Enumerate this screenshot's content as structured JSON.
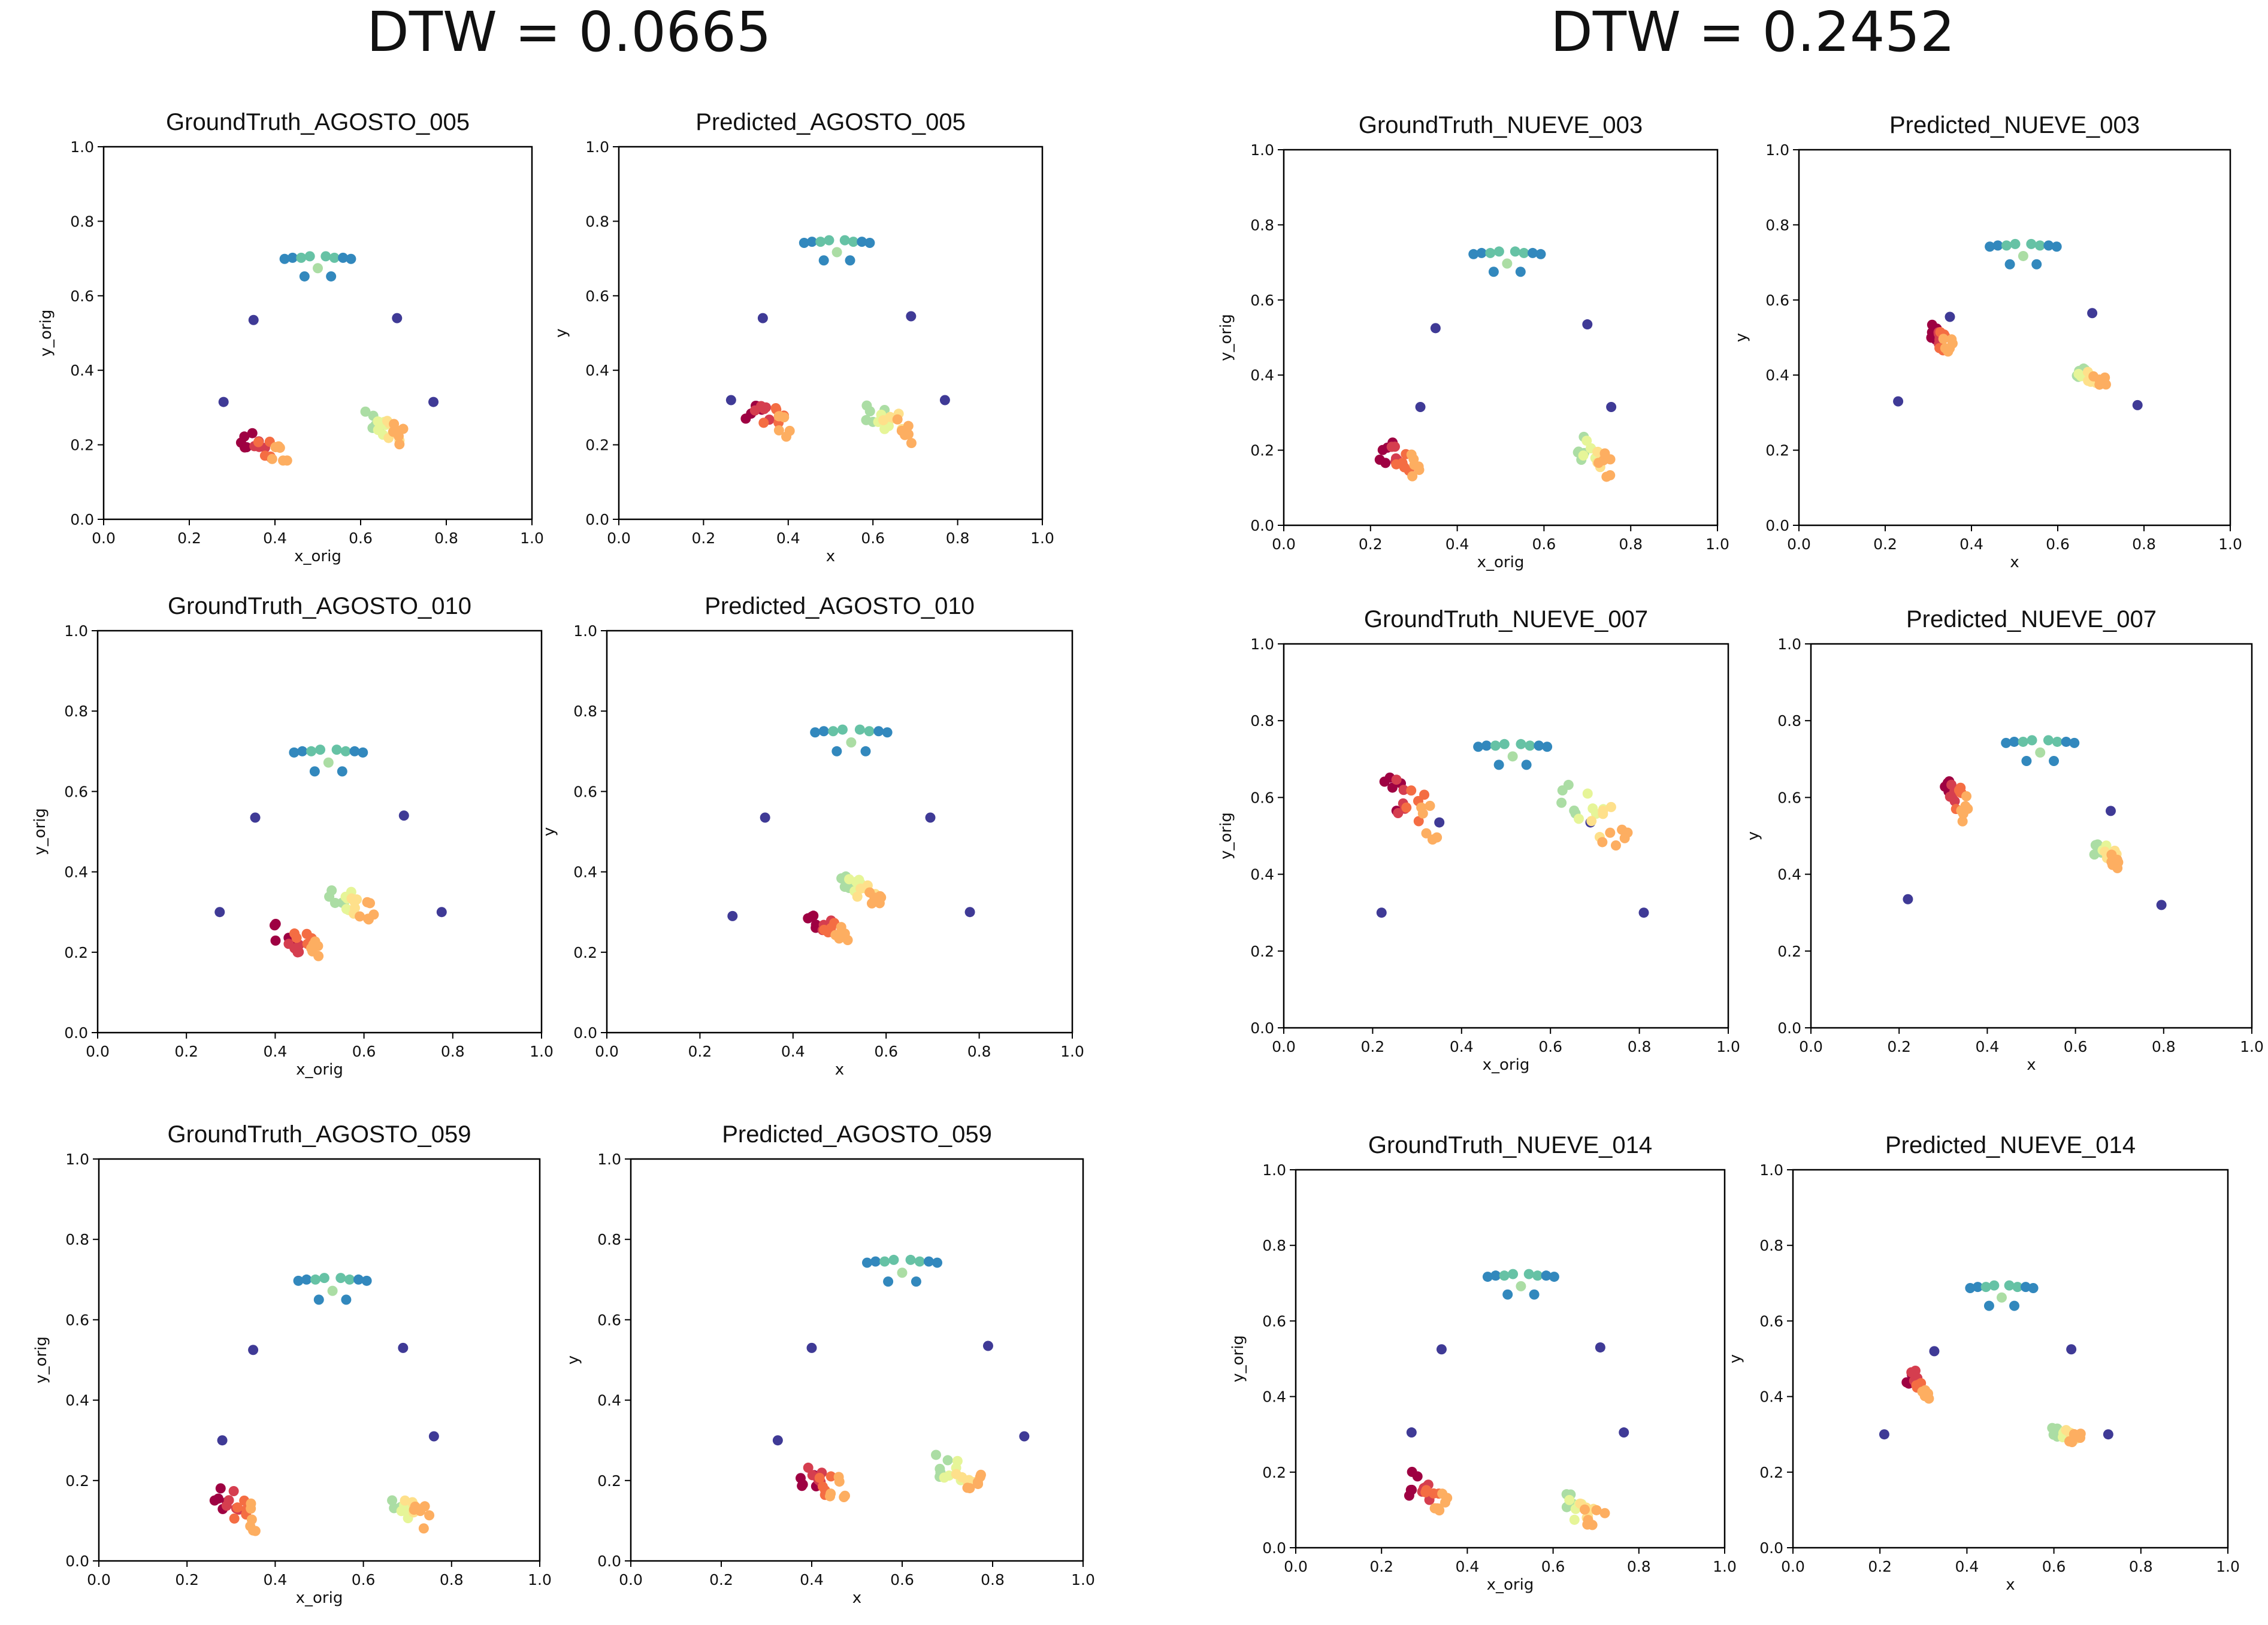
{
  "headings": {
    "left": "DTW = 0.0665",
    "right": "DTW = 0.2452"
  },
  "colors": {
    "axis": "#000000",
    "text": "#111111",
    "palette": [
      "#9e0142",
      "#d53e4f",
      "#f46d43",
      "#fdae61",
      "#fee08b",
      "#e6f598",
      "#abdda4",
      "#66c2a5",
      "#3288bd",
      "#5e4fa2",
      "#3f3a96"
    ]
  },
  "chart_data": [
    {
      "type": "scatter",
      "title": "GroundTruth_AGOSTO_005",
      "xlabel": "x_orig",
      "ylabel": "y_orig",
      "xlim": [
        0,
        1
      ],
      "ylim": [
        0,
        1
      ],
      "xticks": [
        "0.0",
        "0.2",
        "0.4",
        "0.6",
        "0.8",
        "1.0"
      ],
      "yticks": [
        "0.0",
        "0.2",
        "0.4",
        "0.6",
        "0.8",
        "1.0"
      ],
      "pose": {
        "head_cx": 0.5,
        "head_y": 0.702,
        "head_w": 0.155,
        "sh_l": [
          0.35,
          0.535
        ],
        "sh_r": [
          0.685,
          0.54
        ],
        "el_l": [
          0.28,
          0.315
        ],
        "el_r": [
          0.77,
          0.315
        ],
        "hand_l": {
          "cx": 0.375,
          "cy": 0.195,
          "w": 0.105,
          "h": 0.075
        },
        "hand_r": {
          "cx": 0.66,
          "cy": 0.245,
          "w": 0.095,
          "h": 0.075
        }
      }
    },
    {
      "type": "scatter",
      "title": "Predicted_AGOSTO_005",
      "xlabel": "x",
      "ylabel": "y",
      "xlim": [
        0,
        1
      ],
      "ylim": [
        0,
        1
      ],
      "xticks": [
        "0.0",
        "0.2",
        "0.4",
        "0.6",
        "0.8",
        "1.0"
      ],
      "yticks": [
        "0.0",
        "0.2",
        "0.4",
        "0.6",
        "0.8",
        "1.0"
      ],
      "pose": {
        "head_cx": 0.515,
        "head_y": 0.745,
        "head_w": 0.155,
        "sh_l": [
          0.34,
          0.54
        ],
        "sh_r": [
          0.69,
          0.545
        ],
        "el_l": [
          0.265,
          0.32
        ],
        "el_r": [
          0.77,
          0.32
        ],
        "hand_l": {
          "cx": 0.355,
          "cy": 0.27,
          "w": 0.11,
          "h": 0.09
        },
        "hand_r": {
          "cx": 0.64,
          "cy": 0.26,
          "w": 0.11,
          "h": 0.09
        }
      }
    },
    {
      "type": "scatter",
      "title": "GroundTruth_AGOSTO_010",
      "xlabel": "x_orig",
      "ylabel": "y_orig",
      "xlim": [
        0,
        1
      ],
      "ylim": [
        0,
        1
      ],
      "xticks": [
        "0.0",
        "0.2",
        "0.4",
        "0.6",
        "0.8",
        "1.0"
      ],
      "yticks": [
        "0.0",
        "0.2",
        "0.4",
        "0.6",
        "0.8",
        "1.0"
      ],
      "pose": {
        "head_cx": 0.52,
        "head_y": 0.7,
        "head_w": 0.155,
        "sh_l": [
          0.355,
          0.535
        ],
        "sh_r": [
          0.69,
          0.54
        ],
        "el_l": [
          0.275,
          0.3
        ],
        "el_r": [
          0.775,
          0.3
        ],
        "hand_l": {
          "cx": 0.455,
          "cy": 0.22,
          "w": 0.11,
          "h": 0.09
        },
        "hand_r": {
          "cx": 0.575,
          "cy": 0.32,
          "w": 0.1,
          "h": 0.08
        }
      }
    },
    {
      "type": "scatter",
      "title": "Predicted_AGOSTO_010",
      "xlabel": "x",
      "ylabel": "y",
      "xlim": [
        0,
        1
      ],
      "ylim": [
        0,
        1
      ],
      "xticks": [
        "0.0",
        "0.2",
        "0.4",
        "0.6",
        "0.8",
        "1.0"
      ],
      "yticks": [
        "0.0",
        "0.2",
        "0.4",
        "0.6",
        "0.8",
        "1.0"
      ],
      "pose": {
        "head_cx": 0.525,
        "head_y": 0.75,
        "head_w": 0.155,
        "sh_l": [
          0.34,
          0.535
        ],
        "sh_r": [
          0.695,
          0.535
        ],
        "el_l": [
          0.27,
          0.29
        ],
        "el_r": [
          0.78,
          0.3
        ],
        "hand_l": {
          "cx": 0.475,
          "cy": 0.255,
          "w": 0.09,
          "h": 0.07
        },
        "hand_r": {
          "cx": 0.55,
          "cy": 0.36,
          "w": 0.1,
          "h": 0.07
        }
      }
    },
    {
      "type": "scatter",
      "title": "GroundTruth_AGOSTO_059",
      "xlabel": "x_orig",
      "ylabel": "y_orig",
      "xlim": [
        0,
        1
      ],
      "ylim": [
        0,
        1
      ],
      "xticks": [
        "0.0",
        "0.2",
        "0.4",
        "0.6",
        "0.8",
        "1.0"
      ],
      "yticks": [
        "0.0",
        "0.2",
        "0.4",
        "0.6",
        "0.8",
        "1.0"
      ],
      "pose": {
        "head_cx": 0.53,
        "head_y": 0.7,
        "head_w": 0.155,
        "sh_l": [
          0.35,
          0.525
        ],
        "sh_r": [
          0.69,
          0.53
        ],
        "el_l": [
          0.28,
          0.3
        ],
        "el_r": [
          0.76,
          0.31
        ],
        "hand_l": {
          "cx": 0.315,
          "cy": 0.13,
          "w": 0.095,
          "h": 0.09
        },
        "hand_r": {
          "cx": 0.705,
          "cy": 0.13,
          "w": 0.09,
          "h": 0.08
        }
      }
    },
    {
      "type": "scatter",
      "title": "Predicted_AGOSTO_059",
      "xlabel": "x",
      "ylabel": "y",
      "xlim": [
        0,
        1
      ],
      "ylim": [
        0,
        1
      ],
      "xticks": [
        "0.0",
        "0.2",
        "0.4",
        "0.6",
        "0.8",
        "1.0"
      ],
      "yticks": [
        "0.0",
        "0.2",
        "0.4",
        "0.6",
        "0.8",
        "1.0"
      ],
      "pose": {
        "head_cx": 0.6,
        "head_y": 0.745,
        "head_w": 0.155,
        "sh_l": [
          0.4,
          0.53
        ],
        "sh_r": [
          0.79,
          0.535
        ],
        "el_l": [
          0.325,
          0.3
        ],
        "el_r": [
          0.87,
          0.31
        ],
        "hand_l": {
          "cx": 0.425,
          "cy": 0.195,
          "w": 0.11,
          "h": 0.08
        },
        "hand_r": {
          "cx": 0.73,
          "cy": 0.215,
          "w": 0.11,
          "h": 0.08
        }
      }
    },
    {
      "type": "scatter",
      "title": "GroundTruth_NUEVE_003",
      "xlabel": "x_orig",
      "ylabel": "y_orig",
      "xlim": [
        0,
        1
      ],
      "ylim": [
        0,
        1
      ],
      "xticks": [
        "0.0",
        "0.2",
        "0.4",
        "0.6",
        "0.8",
        "1.0"
      ],
      "yticks": [
        "0.0",
        "0.2",
        "0.4",
        "0.6",
        "0.8",
        "1.0"
      ],
      "pose": {
        "head_cx": 0.515,
        "head_y": 0.725,
        "head_w": 0.155,
        "sh_l": [
          0.35,
          0.525
        ],
        "sh_r": [
          0.7,
          0.535
        ],
        "el_l": [
          0.315,
          0.315
        ],
        "el_r": [
          0.755,
          0.315
        ],
        "hand_l": {
          "cx": 0.265,
          "cy": 0.175,
          "w": 0.1,
          "h": 0.09
        },
        "hand_r": {
          "cx": 0.715,
          "cy": 0.185,
          "w": 0.09,
          "h": 0.1
        }
      }
    },
    {
      "type": "scatter",
      "title": "Predicted_NUEVE_003",
      "xlabel": "x",
      "ylabel": "y",
      "xlim": [
        0,
        1
      ],
      "ylim": [
        0,
        1
      ],
      "xticks": [
        "0.0",
        "0.2",
        "0.4",
        "0.6",
        "0.8",
        "1.0"
      ],
      "yticks": [
        "0.0",
        "0.2",
        "0.4",
        "0.6",
        "0.8",
        "1.0"
      ],
      "pose": {
        "head_cx": 0.52,
        "head_y": 0.745,
        "head_w": 0.155,
        "sh_l": [
          0.35,
          0.555
        ],
        "sh_r": [
          0.68,
          0.565
        ],
        "el_l": [
          0.23,
          0.33
        ],
        "el_r": [
          0.785,
          0.32
        ],
        "hand_l": {
          "cx": 0.33,
          "cy": 0.495,
          "w": 0.05,
          "h": 0.07
        },
        "hand_r": {
          "cx": 0.675,
          "cy": 0.395,
          "w": 0.07,
          "h": 0.04
        }
      }
    },
    {
      "type": "scatter",
      "title": "GroundTruth_NUEVE_007",
      "xlabel": "x_orig",
      "ylabel": "y_orig",
      "xlim": [
        0,
        1
      ],
      "ylim": [
        0,
        1
      ],
      "xticks": [
        "0.0",
        "0.2",
        "0.4",
        "0.6",
        "0.8",
        "1.0"
      ],
      "yticks": [
        "0.0",
        "0.2",
        "0.4",
        "0.6",
        "0.8",
        "1.0"
      ],
      "pose": {
        "head_cx": 0.515,
        "head_y": 0.735,
        "head_w": 0.155,
        "sh_l": [
          0.35,
          0.535
        ],
        "sh_r": [
          0.69,
          0.535
        ],
        "el_l": [
          0.22,
          0.3
        ],
        "el_r": [
          0.81,
          0.3
        ],
        "hand_l": {
          "cx": 0.28,
          "cy": 0.575,
          "w": 0.13,
          "h": 0.16
        },
        "hand_r": {
          "cx": 0.7,
          "cy": 0.545,
          "w": 0.16,
          "h": 0.14
        }
      }
    },
    {
      "type": "scatter",
      "title": "Predicted_NUEVE_007",
      "xlabel": "x",
      "ylabel": "y",
      "xlim": [
        0,
        1
      ],
      "ylim": [
        0,
        1
      ],
      "xticks": [
        "0.0",
        "0.2",
        "0.4",
        "0.6",
        "0.8",
        "1.0"
      ],
      "yticks": [
        "0.0",
        "0.2",
        "0.4",
        "0.6",
        "0.8",
        "1.0"
      ],
      "pose": {
        "head_cx": 0.52,
        "head_y": 0.745,
        "head_w": 0.155,
        "sh_l": [
          0.345,
          0.56
        ],
        "sh_r": [
          0.68,
          0.565
        ],
        "el_l": [
          0.22,
          0.335
        ],
        "el_r": [
          0.795,
          0.32
        ],
        "hand_l": {
          "cx": 0.33,
          "cy": 0.605,
          "w": 0.05,
          "h": 0.12
        },
        "hand_r": {
          "cx": 0.675,
          "cy": 0.445,
          "w": 0.07,
          "h": 0.06
        }
      }
    },
    {
      "type": "scatter",
      "title": "GroundTruth_NUEVE_014",
      "xlabel": "x_orig",
      "ylabel": "y_orig",
      "xlim": [
        0,
        1
      ],
      "ylim": [
        0,
        1
      ],
      "xticks": [
        "0.0",
        "0.2",
        "0.4",
        "0.6",
        "0.8",
        "1.0"
      ],
      "yticks": [
        "0.0",
        "0.2",
        "0.4",
        "0.6",
        "0.8",
        "1.0"
      ],
      "pose": {
        "head_cx": 0.525,
        "head_y": 0.72,
        "head_w": 0.155,
        "sh_l": [
          0.34,
          0.525
        ],
        "sh_r": [
          0.71,
          0.53
        ],
        "el_l": [
          0.27,
          0.305
        ],
        "el_r": [
          0.765,
          0.305
        ],
        "hand_l": {
          "cx": 0.305,
          "cy": 0.14,
          "w": 0.09,
          "h": 0.1
        },
        "hand_r": {
          "cx": 0.665,
          "cy": 0.1,
          "w": 0.1,
          "h": 0.09
        }
      }
    },
    {
      "type": "scatter",
      "title": "Predicted_NUEVE_014",
      "xlabel": "x",
      "ylabel": "y",
      "xlim": [
        0,
        1
      ],
      "ylim": [
        0,
        1
      ],
      "xticks": [
        "0.0",
        "0.2",
        "0.4",
        "0.6",
        "0.8",
        "1.0"
      ],
      "yticks": [
        "0.0",
        "0.2",
        "0.4",
        "0.6",
        "0.8",
        "1.0"
      ],
      "pose": {
        "head_cx": 0.48,
        "head_y": 0.69,
        "head_w": 0.145,
        "sh_l": [
          0.325,
          0.52
        ],
        "sh_r": [
          0.64,
          0.525
        ],
        "el_l": [
          0.21,
          0.3
        ],
        "el_r": [
          0.725,
          0.3
        ],
        "hand_l": {
          "cx": 0.285,
          "cy": 0.435,
          "w": 0.05,
          "h": 0.07
        },
        "hand_r": {
          "cx": 0.63,
          "cy": 0.3,
          "w": 0.07,
          "h": 0.04
        }
      }
    }
  ]
}
